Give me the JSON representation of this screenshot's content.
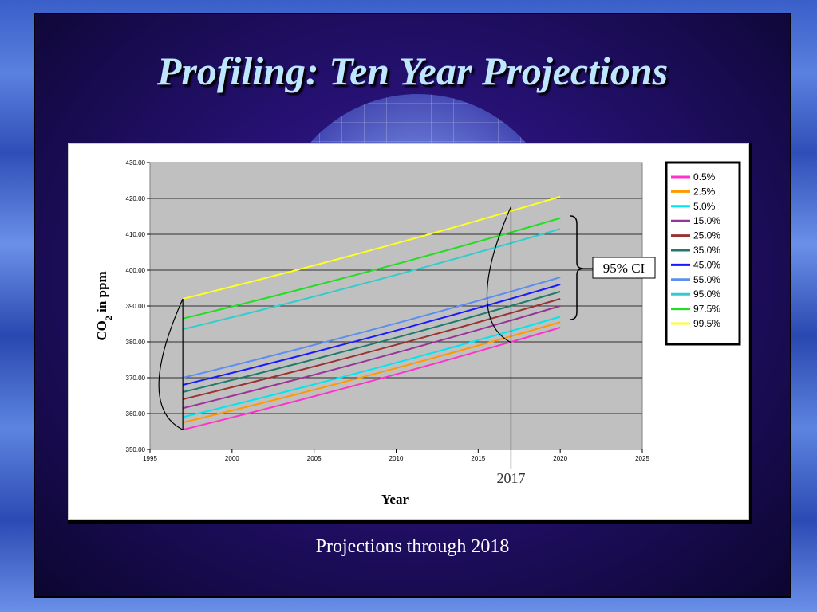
{
  "slide": {
    "title": "Profiling: Ten Year Projections",
    "caption": "Projections through 2018"
  },
  "chart_data": {
    "type": "line",
    "xlabel": "Year",
    "ylabel": "CO2 in ppm",
    "xlim": [
      1995,
      2025
    ],
    "ylim": [
      350,
      430
    ],
    "x_ticks": [
      "1995",
      "2000",
      "2005",
      "2010",
      "2015",
      "2020",
      "2025"
    ],
    "y_ticks": [
      "350.00",
      "360.00",
      "370.00",
      "380.00",
      "390.00",
      "400.00",
      "410.00",
      "420.00",
      "430.00"
    ],
    "grid": true,
    "legend_placement": "right",
    "annotations": {
      "ci_label": "95% CI",
      "year_marker_label": "2017",
      "year_marker_value": 2017
    },
    "series": [
      {
        "name": "0.5%",
        "color": "#ff33cc",
        "x": [
          1997,
          2020
        ],
        "y": [
          355.5,
          384.0
        ]
      },
      {
        "name": "2.5%",
        "color": "#ff9900",
        "x": [
          1997,
          2020
        ],
        "y": [
          357.5,
          385.5
        ]
      },
      {
        "name": "5.0%",
        "color": "#00e5ee",
        "x": [
          1997,
          2020
        ],
        "y": [
          359.0,
          387.0
        ]
      },
      {
        "name": "15.0%",
        "color": "#993399",
        "x": [
          1997,
          2020
        ],
        "y": [
          361.5,
          390.0
        ]
      },
      {
        "name": "25.0%",
        "color": "#993333",
        "x": [
          1997,
          2020
        ],
        "y": [
          364.0,
          392.0
        ]
      },
      {
        "name": "35.0%",
        "color": "#1f7a6a",
        "x": [
          1997,
          2020
        ],
        "y": [
          366.0,
          394.0
        ]
      },
      {
        "name": "45.0%",
        "color": "#1a1aff",
        "x": [
          1997,
          2020
        ],
        "y": [
          368.0,
          396.0
        ]
      },
      {
        "name": "55.0%",
        "color": "#5b8ef0",
        "x": [
          1997,
          2020
        ],
        "y": [
          370.0,
          398.0
        ]
      },
      {
        "name": "95.0%",
        "color": "#33cccc",
        "x": [
          1997,
          2020
        ],
        "y": [
          383.5,
          411.5
        ]
      },
      {
        "name": "97.5%",
        "color": "#22dd22",
        "x": [
          1997,
          2020
        ],
        "y": [
          386.5,
          414.5
        ]
      },
      {
        "name": "99.5%",
        "color": "#ffff22",
        "x": [
          1997,
          2020
        ],
        "y": [
          392.0,
          420.5
        ]
      }
    ]
  }
}
